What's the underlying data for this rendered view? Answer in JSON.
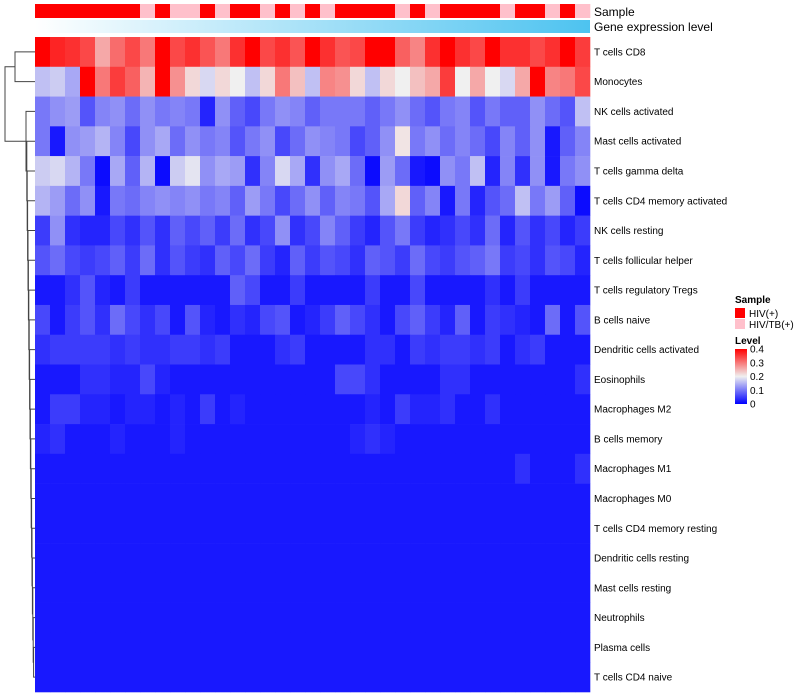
{
  "chart_data": {
    "type": "heatmap",
    "title": "",
    "annotation_rows": [
      "Sample",
      "Gene expression level"
    ],
    "rows": [
      "T cells CD8",
      "Monocytes",
      "NK cells activated",
      "Mast cells activated",
      "T cells gamma delta",
      "T cells CD4 memory activated",
      "NK cells resting",
      "T cells follicular helper",
      "T cells regulatory  Tregs",
      "B cells naive",
      "Dendritic cells activated",
      "Eosinophils",
      "Macrophages M2",
      "B cells memory",
      "Macrophages M1",
      "Macrophages M0",
      "T cells CD4 memory resting",
      "Dendritic cells resting",
      "Mast cells resting",
      "Neutrophils",
      "Plasma cells",
      "T cells CD4 naive"
    ],
    "n_columns": 37,
    "sample_groups": [
      "HIV(+)",
      "HIV(+)",
      "HIV(+)",
      "HIV(+)",
      "HIV(+)",
      "HIV(+)",
      "HIV(+)",
      "HIV/TB(+)",
      "HIV(+)",
      "HIV/TB(+)",
      "HIV/TB(+)",
      "HIV(+)",
      "HIV/TB(+)",
      "HIV(+)",
      "HIV(+)",
      "HIV/TB(+)",
      "HIV(+)",
      "HIV/TB(+)",
      "HIV(+)",
      "HIV/TB(+)",
      "HIV(+)",
      "HIV(+)",
      "HIV(+)",
      "HIV(+)",
      "HIV/TB(+)",
      "HIV(+)",
      "HIV/TB(+)",
      "HIV(+)",
      "HIV(+)",
      "HIV(+)",
      "HIV(+)",
      "HIV/TB(+)",
      "HIV(+)",
      "HIV(+)",
      "HIV/TB(+)",
      "HIV(+)",
      "HIV/TB(+)"
    ],
    "values": [
      [
        0.4,
        0.37,
        0.36,
        0.34,
        0.26,
        0.31,
        0.34,
        0.3,
        0.4,
        0.34,
        0.36,
        0.33,
        0.3,
        0.36,
        0.4,
        0.34,
        0.36,
        0.33,
        0.4,
        0.36,
        0.33,
        0.34,
        0.4,
        0.4,
        0.32,
        0.29,
        0.36,
        0.4,
        0.36,
        0.34,
        0.4,
        0.36,
        0.36,
        0.34,
        0.36,
        0.4,
        0.35
      ],
      [
        0.16,
        0.17,
        0.14,
        0.4,
        0.3,
        0.35,
        0.32,
        0.25,
        0.4,
        0.28,
        0.22,
        0.18,
        0.22,
        0.2,
        0.16,
        0.22,
        0.3,
        0.24,
        0.16,
        0.29,
        0.28,
        0.22,
        0.16,
        0.22,
        0.2,
        0.24,
        0.26,
        0.35,
        0.2,
        0.26,
        0.2,
        0.18,
        0.26,
        0.4,
        0.29,
        0.3,
        0.34
      ],
      [
        0.1,
        0.12,
        0.13,
        0.07,
        0.11,
        0.12,
        0.09,
        0.12,
        0.1,
        0.11,
        0.1,
        0.03,
        0.12,
        0.08,
        0.06,
        0.1,
        0.12,
        0.11,
        0.08,
        0.1,
        0.1,
        0.1,
        0.08,
        0.1,
        0.12,
        0.09,
        0.07,
        0.1,
        0.11,
        0.07,
        0.1,
        0.08,
        0.08,
        0.12,
        0.09,
        0.07,
        0.16
      ],
      [
        0.1,
        0.02,
        0.12,
        0.13,
        0.15,
        0.11,
        0.06,
        0.12,
        0.14,
        0.09,
        0.12,
        0.1,
        0.11,
        0.07,
        0.1,
        0.12,
        0.06,
        0.09,
        0.12,
        0.11,
        0.1,
        0.06,
        0.08,
        0.12,
        0.21,
        0.1,
        0.12,
        0.09,
        0.11,
        0.09,
        0.06,
        0.11,
        0.08,
        0.12,
        0.02,
        0.08,
        0.11
      ],
      [
        0.17,
        0.18,
        0.15,
        0.1,
        0.01,
        0.14,
        0.08,
        0.15,
        0.01,
        0.17,
        0.19,
        0.12,
        0.14,
        0.13,
        0.04,
        0.11,
        0.18,
        0.14,
        0.04,
        0.12,
        0.14,
        0.09,
        0.01,
        0.13,
        0.09,
        0.02,
        0.01,
        0.12,
        0.1,
        0.16,
        0.03,
        0.11,
        0.04,
        0.12,
        0.02,
        0.1,
        0.12
      ],
      [
        0.15,
        0.13,
        0.09,
        0.12,
        0.02,
        0.1,
        0.09,
        0.11,
        0.12,
        0.11,
        0.12,
        0.1,
        0.11,
        0.08,
        0.13,
        0.1,
        0.06,
        0.09,
        0.12,
        0.08,
        0.11,
        0.1,
        0.07,
        0.14,
        0.22,
        0.08,
        0.11,
        0.02,
        0.1,
        0.03,
        0.07,
        0.09,
        0.16,
        0.1,
        0.13,
        0.08,
        0.01
      ],
      [
        0.05,
        0.12,
        0.04,
        0.03,
        0.03,
        0.06,
        0.04,
        0.07,
        0.04,
        0.08,
        0.06,
        0.08,
        0.05,
        0.09,
        0.04,
        0.06,
        0.12,
        0.04,
        0.06,
        0.11,
        0.08,
        0.05,
        0.03,
        0.07,
        0.1,
        0.05,
        0.03,
        0.04,
        0.06,
        0.04,
        0.09,
        0.03,
        0.07,
        0.04,
        0.06,
        0.03,
        0.05
      ],
      [
        0.07,
        0.09,
        0.06,
        0.05,
        0.06,
        0.08,
        0.05,
        0.09,
        0.04,
        0.07,
        0.05,
        0.04,
        0.08,
        0.06,
        0.09,
        0.05,
        0.03,
        0.08,
        0.05,
        0.07,
        0.06,
        0.04,
        0.08,
        0.07,
        0.05,
        0.09,
        0.06,
        0.05,
        0.07,
        0.08,
        0.1,
        0.05,
        0.06,
        0.04,
        0.07,
        0.06,
        0.03
      ],
      [
        0.02,
        0.02,
        0.04,
        0.07,
        0.03,
        0.02,
        0.05,
        0.02,
        0.02,
        0.02,
        0.02,
        0.02,
        0.02,
        0.08,
        0.06,
        0.02,
        0.02,
        0.05,
        0.02,
        0.02,
        0.02,
        0.02,
        0.05,
        0.02,
        0.02,
        0.06,
        0.02,
        0.02,
        0.02,
        0.02,
        0.04,
        0.02,
        0.05,
        0.02,
        0.02,
        0.02,
        0.02
      ],
      [
        0.06,
        0.02,
        0.05,
        0.07,
        0.04,
        0.09,
        0.06,
        0.04,
        0.06,
        0.02,
        0.07,
        0.03,
        0.02,
        0.04,
        0.03,
        0.06,
        0.07,
        0.02,
        0.03,
        0.05,
        0.08,
        0.06,
        0.04,
        0.02,
        0.06,
        0.08,
        0.05,
        0.03,
        0.08,
        0.02,
        0.05,
        0.04,
        0.03,
        0.02,
        0.09,
        0.02,
        0.07
      ],
      [
        0.04,
        0.05,
        0.05,
        0.05,
        0.05,
        0.04,
        0.05,
        0.04,
        0.04,
        0.05,
        0.05,
        0.04,
        0.05,
        0.02,
        0.02,
        0.02,
        0.04,
        0.05,
        0.02,
        0.02,
        0.02,
        0.02,
        0.04,
        0.04,
        0.02,
        0.05,
        0.04,
        0.05,
        0.05,
        0.04,
        0.05,
        0.02,
        0.04,
        0.05,
        0.02,
        0.02,
        0.02
      ],
      [
        0.02,
        0.02,
        0.02,
        0.04,
        0.04,
        0.03,
        0.03,
        0.06,
        0.03,
        0.02,
        0.02,
        0.02,
        0.02,
        0.02,
        0.02,
        0.02,
        0.02,
        0.02,
        0.02,
        0.02,
        0.06,
        0.06,
        0.04,
        0.02,
        0.02,
        0.02,
        0.02,
        0.04,
        0.04,
        0.02,
        0.02,
        0.02,
        0.02,
        0.02,
        0.02,
        0.02,
        0.04
      ],
      [
        0.02,
        0.05,
        0.05,
        0.03,
        0.03,
        0.02,
        0.03,
        0.03,
        0.02,
        0.03,
        0.02,
        0.05,
        0.02,
        0.03,
        0.02,
        0.02,
        0.02,
        0.02,
        0.02,
        0.02,
        0.02,
        0.02,
        0.03,
        0.02,
        0.05,
        0.03,
        0.03,
        0.04,
        0.02,
        0.02,
        0.04,
        0.02,
        0.02,
        0.02,
        0.02,
        0.02,
        0.02
      ],
      [
        0.03,
        0.04,
        0.02,
        0.02,
        0.02,
        0.03,
        0.02,
        0.02,
        0.02,
        0.03,
        0.02,
        0.02,
        0.02,
        0.02,
        0.02,
        0.02,
        0.02,
        0.02,
        0.02,
        0.02,
        0.02,
        0.03,
        0.04,
        0.03,
        0.02,
        0.02,
        0.02,
        0.02,
        0.02,
        0.02,
        0.02,
        0.02,
        0.02,
        0.02,
        0.02,
        0.02,
        0.02
      ],
      [
        0.02,
        0.02,
        0.02,
        0.02,
        0.02,
        0.02,
        0.02,
        0.02,
        0.02,
        0.02,
        0.02,
        0.02,
        0.02,
        0.02,
        0.02,
        0.02,
        0.02,
        0.02,
        0.02,
        0.02,
        0.02,
        0.02,
        0.02,
        0.02,
        0.02,
        0.02,
        0.02,
        0.02,
        0.02,
        0.02,
        0.02,
        0.02,
        0.04,
        0.02,
        0.02,
        0.02,
        0.04
      ],
      [
        0.02,
        0.02,
        0.02,
        0.02,
        0.02,
        0.02,
        0.02,
        0.02,
        0.02,
        0.02,
        0.02,
        0.02,
        0.02,
        0.02,
        0.02,
        0.02,
        0.02,
        0.02,
        0.02,
        0.02,
        0.02,
        0.02,
        0.02,
        0.02,
        0.02,
        0.02,
        0.02,
        0.02,
        0.02,
        0.02,
        0.02,
        0.02,
        0.02,
        0.02,
        0.02,
        0.02,
        0.02
      ],
      [
        0.02,
        0.02,
        0.02,
        0.02,
        0.02,
        0.02,
        0.02,
        0.02,
        0.02,
        0.02,
        0.02,
        0.02,
        0.02,
        0.02,
        0.02,
        0.02,
        0.02,
        0.02,
        0.02,
        0.02,
        0.02,
        0.02,
        0.02,
        0.02,
        0.02,
        0.02,
        0.02,
        0.02,
        0.02,
        0.02,
        0.02,
        0.02,
        0.02,
        0.02,
        0.02,
        0.02,
        0.02
      ],
      [
        0.02,
        0.02,
        0.02,
        0.02,
        0.02,
        0.02,
        0.02,
        0.02,
        0.02,
        0.02,
        0.02,
        0.02,
        0.02,
        0.02,
        0.02,
        0.02,
        0.02,
        0.02,
        0.02,
        0.02,
        0.02,
        0.02,
        0.02,
        0.02,
        0.02,
        0.02,
        0.02,
        0.02,
        0.02,
        0.02,
        0.02,
        0.02,
        0.02,
        0.02,
        0.02,
        0.02,
        0.02
      ],
      [
        0.02,
        0.02,
        0.02,
        0.02,
        0.02,
        0.02,
        0.02,
        0.02,
        0.02,
        0.02,
        0.02,
        0.02,
        0.02,
        0.02,
        0.02,
        0.02,
        0.02,
        0.02,
        0.02,
        0.02,
        0.02,
        0.02,
        0.02,
        0.02,
        0.02,
        0.02,
        0.02,
        0.02,
        0.02,
        0.02,
        0.02,
        0.02,
        0.02,
        0.02,
        0.02,
        0.02,
        0.02
      ],
      [
        0.02,
        0.02,
        0.02,
        0.02,
        0.02,
        0.02,
        0.02,
        0.02,
        0.02,
        0.02,
        0.02,
        0.02,
        0.02,
        0.02,
        0.02,
        0.02,
        0.02,
        0.02,
        0.02,
        0.02,
        0.02,
        0.02,
        0.02,
        0.02,
        0.02,
        0.02,
        0.02,
        0.02,
        0.02,
        0.02,
        0.02,
        0.02,
        0.02,
        0.02,
        0.02,
        0.02,
        0.02
      ],
      [
        0.02,
        0.02,
        0.02,
        0.02,
        0.02,
        0.02,
        0.02,
        0.02,
        0.02,
        0.02,
        0.02,
        0.02,
        0.02,
        0.02,
        0.02,
        0.02,
        0.02,
        0.02,
        0.02,
        0.02,
        0.02,
        0.02,
        0.02,
        0.02,
        0.02,
        0.02,
        0.02,
        0.02,
        0.02,
        0.02,
        0.02,
        0.02,
        0.02,
        0.02,
        0.02,
        0.02,
        0.02
      ],
      [
        0.02,
        0.02,
        0.02,
        0.02,
        0.02,
        0.02,
        0.02,
        0.02,
        0.02,
        0.02,
        0.02,
        0.02,
        0.02,
        0.02,
        0.02,
        0.02,
        0.02,
        0.02,
        0.02,
        0.02,
        0.02,
        0.02,
        0.02,
        0.02,
        0.02,
        0.02,
        0.02,
        0.02,
        0.02,
        0.02,
        0.02,
        0.02,
        0.02,
        0.02,
        0.02,
        0.02,
        0.02
      ]
    ],
    "color_scale": {
      "min": 0,
      "max": 0.4,
      "low": "#0000ff",
      "mid": "#f0f0f0",
      "high": "#ff0000",
      "midpoint": 0.2
    },
    "legend": {
      "sample_title": "Sample",
      "sample_entries": [
        {
          "label": "HIV(+)",
          "color": "#ff0000"
        },
        {
          "label": "HIV/TB(+)",
          "color": "#ffc0cb"
        }
      ],
      "level_title": "Level",
      "level_ticks": [
        {
          "value": 0.4,
          "label": "0.4"
        },
        {
          "value": 0.3,
          "label": "0.3"
        },
        {
          "value": 0.2,
          "label": "0.2"
        },
        {
          "value": 0.1,
          "label": "0.1"
        },
        {
          "value": 0,
          "label": "0"
        }
      ],
      "placement": "right"
    },
    "expression_gradient": {
      "from": "#ffffff",
      "to": "#4dc3f0"
    }
  }
}
